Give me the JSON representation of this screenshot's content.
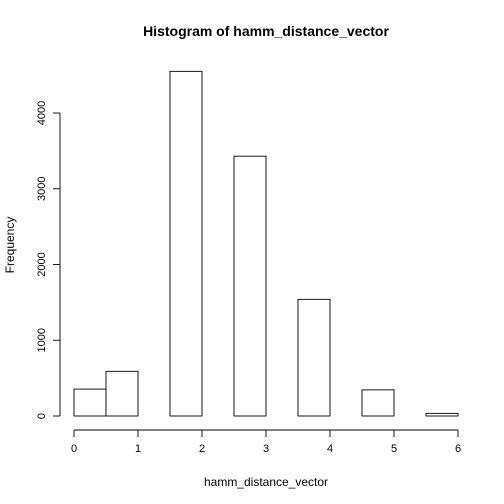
{
  "chart_data": {
    "type": "bar",
    "title": "Histogram of hamm_distance_vector",
    "xlabel": "hamm_distance_vector",
    "ylabel": "Frequency",
    "bin_edges": [
      0,
      0.5,
      1,
      1.5,
      2,
      2.5,
      3,
      3.5,
      4,
      4.5,
      5,
      5.5,
      6
    ],
    "values": [
      355,
      590,
      0,
      4550,
      0,
      3430,
      0,
      1540,
      0,
      345,
      0,
      35
    ],
    "xlim": [
      0,
      6
    ],
    "ylim": [
      0,
      4700
    ],
    "x_ticks": [
      0,
      1,
      2,
      3,
      4,
      5,
      6
    ],
    "y_ticks": [
      0,
      1000,
      2000,
      3000,
      4000
    ],
    "grid": false,
    "legend": "none",
    "bar_fill": "#ffffff",
    "bar_stroke": "#000000"
  }
}
